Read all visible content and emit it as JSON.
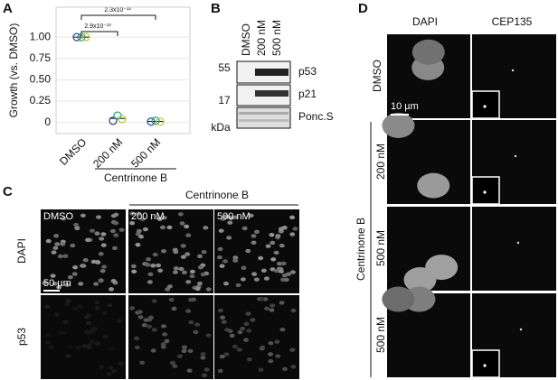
{
  "panels": {
    "a": "A",
    "b": "B",
    "c": "C",
    "d": "D"
  },
  "chart_data": {
    "type": "scatter",
    "ylabel": "Growth (vs. DMSO)",
    "categories": [
      "DMSO",
      "200 nM",
      "500 nM"
    ],
    "group_label": "Centrinone B",
    "series": [
      {
        "color": "#3b4a8c",
        "values": [
          1.0,
          0.02,
          0.01
        ]
      },
      {
        "color": "#2aa198",
        "values": [
          1.0,
          0.08,
          0.02
        ]
      },
      {
        "color": "#b5d334",
        "values": [
          1.0,
          0.04,
          0.01
        ]
      }
    ],
    "ylim": [
      -0.13,
      1.35
    ],
    "yticks": [
      0,
      0.25,
      {
        "value": 0.5,
        "label": "0.50"
      },
      0.75,
      {
        "value": 1,
        "label": "1.00"
      }
    ],
    "grid": true,
    "annotations": [
      "2.9x10⁻¹³",
      "2.3x10⁻¹³"
    ]
  },
  "blot": {
    "lanes": [
      "DMSO",
      "200 nM",
      "500 nM"
    ],
    "markers": [
      "55",
      "17"
    ],
    "unit": "kDa",
    "bands": [
      "p53",
      "p21",
      "Ponc.S"
    ]
  },
  "panel_c": {
    "group": "Centrinone B",
    "columns": [
      "DMSO",
      "200 nM",
      "500 nM"
    ],
    "rows": [
      "DAPI",
      "p53"
    ],
    "scale": "50 µm"
  },
  "panel_d": {
    "columns": [
      "DAPI",
      "CEP135"
    ],
    "rows": [
      "DMSO",
      "200 nM",
      "500 nM",
      "500 nM"
    ],
    "group": "Centrinone B",
    "scale": "10 µm"
  }
}
